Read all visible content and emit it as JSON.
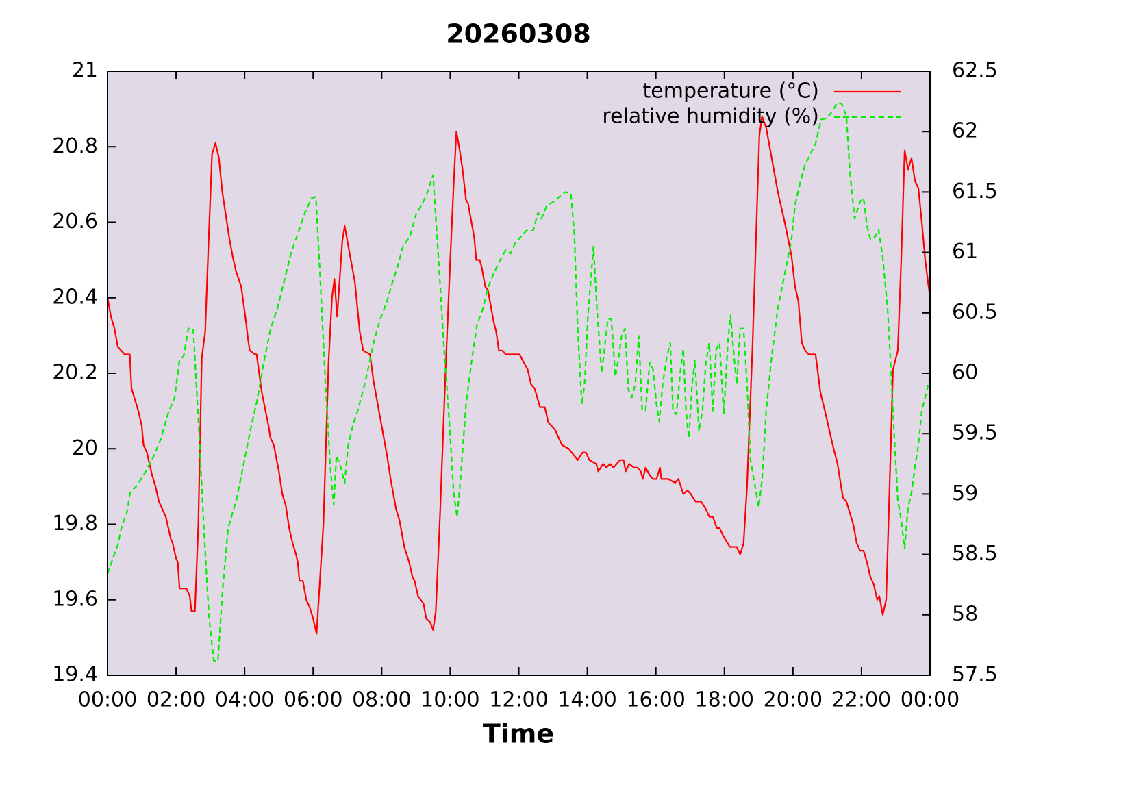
{
  "chart_data": {
    "type": "line",
    "title": "20260308",
    "x_label": "Time",
    "xlim": [
      0,
      24
    ],
    "xticks": [
      {
        "value": 0,
        "label": "00:00"
      },
      {
        "value": 2,
        "label": "02:00"
      },
      {
        "value": 4,
        "label": "04:00"
      },
      {
        "value": 6,
        "label": "06:00"
      },
      {
        "value": 8,
        "label": "08:00"
      },
      {
        "value": 10,
        "label": "10:00"
      },
      {
        "value": 12,
        "label": "12:00"
      },
      {
        "value": 14,
        "label": "14:00"
      },
      {
        "value": 16,
        "label": "16:00"
      },
      {
        "value": 18,
        "label": "18:00"
      },
      {
        "value": 20,
        "label": "20:00"
      },
      {
        "value": 22,
        "label": "22:00"
      },
      {
        "value": 24,
        "label": "00:00"
      }
    ],
    "ylim": [
      19.4,
      21
    ],
    "yticks": [
      19.4,
      19.6,
      19.8,
      20,
      20.2,
      20.4,
      20.6,
      20.8,
      21
    ],
    "y2lim": [
      57.5,
      62.5
    ],
    "y2ticks": [
      57.5,
      58,
      58.5,
      59,
      59.5,
      60,
      60.5,
      61,
      61.5,
      62,
      62.5
    ],
    "legend": "top right",
    "background": "#e1d9e6",
    "series": [
      {
        "name": "temperature (°C)",
        "color": "#ff0000",
        "dash": false,
        "x": [
          0,
          0.1,
          0.2,
          0.3,
          0.5,
          0.65,
          0.7,
          0.9,
          1.0,
          1.05,
          1.15,
          1.3,
          1.4,
          1.5,
          1.7,
          1.85,
          1.9,
          2.0,
          2.05,
          2.1,
          2.3,
          2.4,
          2.45,
          2.55,
          2.65,
          2.75,
          2.85,
          2.95,
          3.05,
          3.15,
          3.25,
          3.35,
          3.55,
          3.65,
          3.75,
          3.9,
          4.05,
          4.1,
          4.15,
          4.3,
          4.35,
          4.5,
          4.7,
          4.75,
          4.85,
          5.0,
          5.1,
          5.2,
          5.3,
          5.4,
          5.5,
          5.55,
          5.6,
          5.7,
          5.8,
          5.9,
          6.0,
          6.1,
          6.3,
          6.45,
          6.55,
          6.62,
          6.7,
          6.85,
          6.92,
          7.06,
          7.22,
          7.36,
          7.46,
          7.66,
          7.76,
          7.96,
          8.16,
          8.26,
          8.42,
          8.52,
          8.66,
          8.8,
          8.9,
          8.96,
          9.06,
          9.22,
          9.3,
          9.42,
          9.5,
          9.58,
          9.7,
          9.86,
          10.0,
          10.1,
          10.18,
          10.26,
          10.36,
          10.46,
          10.52,
          10.62,
          10.7,
          10.76,
          10.86,
          10.92,
          11.02,
          11.1,
          11.18,
          11.26,
          11.34,
          11.42,
          11.52,
          11.62,
          12.02,
          12.26,
          12.36,
          12.46,
          12.62,
          12.76,
          12.86,
          13.06,
          13.26,
          13.46,
          13.72,
          13.86,
          13.96,
          14.06,
          14.26,
          14.32,
          14.46,
          14.56,
          14.66,
          14.76,
          14.96,
          15.06,
          15.12,
          15.22,
          15.36,
          15.46,
          15.56,
          15.62,
          15.7,
          15.82,
          15.92,
          16.02,
          16.12,
          16.16,
          16.36,
          16.56,
          16.66,
          16.8,
          16.92,
          17.02,
          17.16,
          17.32,
          17.46,
          17.56,
          17.66,
          17.78,
          17.86,
          17.96,
          18.16,
          18.36,
          18.46,
          18.56,
          18.66,
          18.82,
          19.02,
          19.1,
          19.22,
          19.36,
          19.56,
          19.76,
          19.96,
          20.06,
          20.16,
          20.26,
          20.36,
          20.46,
          20.66,
          20.8,
          20.96,
          21.16,
          21.3,
          21.46,
          21.56,
          21.66,
          21.76,
          21.86,
          21.96,
          22.06,
          22.16,
          22.26,
          22.36,
          22.46,
          22.52,
          22.62,
          22.72,
          22.82,
          22.92,
          23.06,
          23.16,
          23.26,
          23.36,
          23.46,
          23.56,
          23.66,
          23.76,
          23.86,
          24.0
        ],
        "values": [
          20.4,
          20.35,
          20.32,
          20.27,
          20.25,
          20.25,
          20.16,
          20.1,
          20.06,
          20.01,
          19.99,
          19.93,
          19.9,
          19.86,
          19.82,
          19.76,
          19.75,
          19.71,
          19.7,
          19.63,
          19.63,
          19.61,
          19.57,
          19.57,
          19.8,
          20.24,
          20.31,
          20.55,
          20.78,
          20.81,
          20.77,
          20.68,
          20.56,
          20.51,
          20.47,
          20.43,
          20.33,
          20.29,
          20.26,
          20.25,
          20.25,
          20.15,
          20.06,
          20.03,
          20.01,
          19.94,
          19.88,
          19.85,
          19.79,
          19.75,
          19.72,
          19.7,
          19.65,
          19.65,
          19.6,
          19.58,
          19.55,
          19.51,
          19.8,
          20.23,
          20.4,
          20.45,
          20.35,
          20.55,
          20.59,
          20.52,
          20.44,
          20.31,
          20.26,
          20.25,
          20.18,
          20.08,
          19.98,
          19.92,
          19.84,
          19.81,
          19.74,
          19.7,
          19.66,
          19.65,
          19.61,
          19.59,
          19.55,
          19.54,
          19.52,
          19.57,
          19.82,
          20.2,
          20.5,
          20.7,
          20.84,
          20.8,
          20.74,
          20.66,
          20.65,
          20.6,
          20.56,
          20.5,
          20.5,
          20.48,
          20.43,
          20.42,
          20.38,
          20.34,
          20.31,
          20.26,
          20.26,
          20.25,
          20.25,
          20.21,
          20.17,
          20.16,
          20.11,
          20.11,
          20.07,
          20.05,
          20.01,
          20.0,
          19.97,
          19.99,
          19.99,
          19.97,
          19.96,
          19.94,
          19.96,
          19.95,
          19.96,
          19.95,
          19.97,
          19.97,
          19.94,
          19.96,
          19.95,
          19.95,
          19.94,
          19.92,
          19.95,
          19.93,
          19.92,
          19.92,
          19.95,
          19.92,
          19.92,
          19.91,
          19.92,
          19.88,
          19.89,
          19.88,
          19.86,
          19.86,
          19.84,
          19.82,
          19.82,
          19.79,
          19.79,
          19.77,
          19.74,
          19.74,
          19.72,
          19.75,
          19.9,
          20.27,
          20.83,
          20.88,
          20.85,
          20.78,
          20.68,
          20.6,
          20.51,
          20.43,
          20.39,
          20.28,
          20.26,
          20.25,
          20.25,
          20.15,
          20.09,
          20.01,
          19.96,
          19.87,
          19.86,
          19.83,
          19.8,
          19.75,
          19.73,
          19.73,
          19.7,
          19.66,
          19.64,
          19.6,
          19.61,
          19.56,
          19.6,
          19.9,
          20.21,
          20.26,
          20.5,
          20.79,
          20.74,
          20.77,
          20.71,
          20.69,
          20.6,
          20.5,
          20.4
        ]
      },
      {
        "name": "relative humidity (%)",
        "color": "#00ee00",
        "dash": true,
        "axis": "y2",
        "x": [
          0,
          0.16,
          0.3,
          0.42,
          0.56,
          0.66,
          0.86,
          1.1,
          1.36,
          1.56,
          1.76,
          1.96,
          2.1,
          2.22,
          2.36,
          2.5,
          2.66,
          2.82,
          2.96,
          3.1,
          3.22,
          3.36,
          3.52,
          3.76,
          3.96,
          4.16,
          4.36,
          4.56,
          4.76,
          4.96,
          5.16,
          5.36,
          5.56,
          5.76,
          5.96,
          6.08,
          6.2,
          6.36,
          6.5,
          6.6,
          6.68,
          6.8,
          6.92,
          7.02,
          7.16,
          7.3,
          7.46,
          7.6,
          7.76,
          7.96,
          8.16,
          8.3,
          8.46,
          8.62,
          8.82,
          9.02,
          9.16,
          9.3,
          9.5,
          9.66,
          9.82,
          9.98,
          10.1,
          10.2,
          10.3,
          10.46,
          10.62,
          10.78,
          10.96,
          11.1,
          11.26,
          11.46,
          11.62,
          11.76,
          11.9,
          12.06,
          12.22,
          12.42,
          12.56,
          12.66,
          12.82,
          13.02,
          13.22,
          13.36,
          13.52,
          13.62,
          13.72,
          13.84,
          13.92,
          14.02,
          14.18,
          14.28,
          14.42,
          14.5,
          14.6,
          14.7,
          14.82,
          14.92,
          15.0,
          15.1,
          15.2,
          15.3,
          15.4,
          15.5,
          15.6,
          15.7,
          15.82,
          15.92,
          16.02,
          16.1,
          16.2,
          16.32,
          16.42,
          16.5,
          16.6,
          16.72,
          16.8,
          16.88,
          16.96,
          17.06,
          17.14,
          17.26,
          17.36,
          17.46,
          17.56,
          17.66,
          17.76,
          17.86,
          17.98,
          18.1,
          18.18,
          18.28,
          18.36,
          18.46,
          18.56,
          18.66,
          18.76,
          18.86,
          19.0,
          19.1,
          19.22,
          19.36,
          19.56,
          19.76,
          19.96,
          20.06,
          20.22,
          20.36,
          20.5,
          20.66,
          20.82,
          20.96,
          21.1,
          21.3,
          21.42,
          21.56,
          21.66,
          21.8,
          21.96,
          22.06,
          22.16,
          22.26,
          22.4,
          22.5,
          22.62,
          22.76,
          22.86,
          22.96,
          23.06,
          23.16,
          23.26,
          23.36,
          23.46,
          23.56,
          23.66,
          23.76,
          23.86,
          24.0
        ],
        "values": [
          58.34,
          58.47,
          58.58,
          58.74,
          58.84,
          59.01,
          59.07,
          59.18,
          59.32,
          59.46,
          59.66,
          59.8,
          60.11,
          60.14,
          60.37,
          60.37,
          59.57,
          58.67,
          57.99,
          57.62,
          57.62,
          58.21,
          58.72,
          58.95,
          59.23,
          59.52,
          59.77,
          60.09,
          60.37,
          60.54,
          60.77,
          61.0,
          61.16,
          61.33,
          61.45,
          61.46,
          60.82,
          59.91,
          59.23,
          58.91,
          59.32,
          59.23,
          59.09,
          59.4,
          59.57,
          59.69,
          59.86,
          60.03,
          60.25,
          60.45,
          60.6,
          60.74,
          60.88,
          61.05,
          61.13,
          61.33,
          61.39,
          61.47,
          61.64,
          60.94,
          60.2,
          59.57,
          59.01,
          58.81,
          59.12,
          59.74,
          60.09,
          60.4,
          60.54,
          60.71,
          60.82,
          60.94,
          61.02,
          60.99,
          61.08,
          61.13,
          61.18,
          61.18,
          61.33,
          61.28,
          61.39,
          61.42,
          61.47,
          61.5,
          61.49,
          61.16,
          60.37,
          59.74,
          59.91,
          60.48,
          61.05,
          60.54,
          60.0,
          60.2,
          60.45,
          60.45,
          59.97,
          60.14,
          60.31,
          60.37,
          59.86,
          59.8,
          59.91,
          60.31,
          59.69,
          59.69,
          60.09,
          60.03,
          59.74,
          59.6,
          59.91,
          60.14,
          60.25,
          59.69,
          59.66,
          60.03,
          60.2,
          59.69,
          59.46,
          59.91,
          60.11,
          59.52,
          59.69,
          60.09,
          60.25,
          59.69,
          60.2,
          60.25,
          59.66,
          60.25,
          60.48,
          60.14,
          59.91,
          60.37,
          60.37,
          59.91,
          59.29,
          59.12,
          58.89,
          59.12,
          59.69,
          60.09,
          60.54,
          60.82,
          61.11,
          61.39,
          61.59,
          61.73,
          61.81,
          61.9,
          62.1,
          62.11,
          62.15,
          62.24,
          62.23,
          62.13,
          61.67,
          61.28,
          61.42,
          61.45,
          61.22,
          61.11,
          61.13,
          61.19,
          60.96,
          60.54,
          60.03,
          59.46,
          58.95,
          58.78,
          58.55,
          58.89,
          59.01,
          59.23,
          59.4,
          59.69,
          59.8,
          59.97
        ]
      }
    ]
  }
}
